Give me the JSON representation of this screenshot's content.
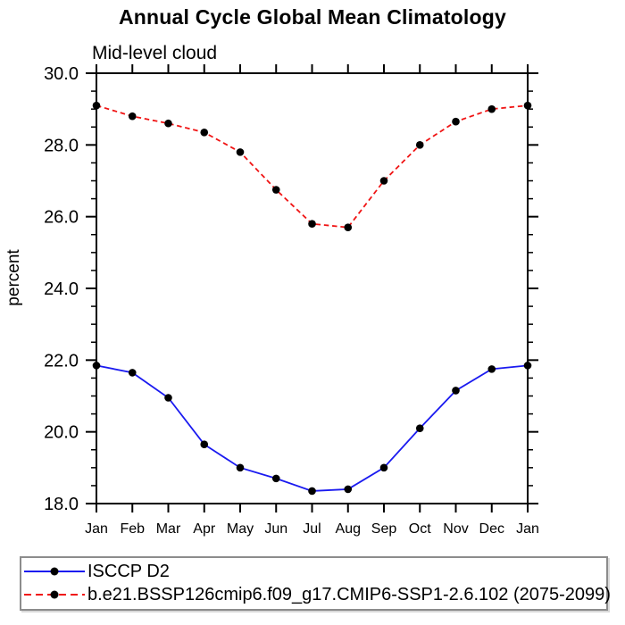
{
  "chart_data": {
    "type": "line",
    "title": "Annual Cycle Global Mean Climatology",
    "subtitle": "Mid-level cloud",
    "xlabel": "",
    "ylabel": "percent",
    "x_categories": [
      "Jan",
      "Feb",
      "Mar",
      "Apr",
      "May",
      "Jun",
      "Jul",
      "Aug",
      "Sep",
      "Oct",
      "Nov",
      "Dec",
      "Jan"
    ],
    "ylim": [
      18.0,
      30.0
    ],
    "y_major_step": 2.0,
    "y_minor_step": 0.5,
    "y_tick_labels": [
      "30.0",
      "28.0",
      "26.0",
      "24.0",
      "22.0",
      "20.0",
      "18.0"
    ],
    "grid": false,
    "frame_color": "#000000",
    "legend_position": "bottom",
    "series": [
      {
        "name": "ISCCP D2",
        "color": "#1a1af0",
        "line_style": "solid",
        "marker": "filled-circle",
        "marker_color": "#000000",
        "values": [
          21.85,
          21.65,
          20.95,
          19.65,
          19.0,
          18.7,
          18.35,
          18.4,
          19.0,
          20.1,
          21.15,
          21.75,
          21.85
        ]
      },
      {
        "name": "b.e21.BSSP126cmip6.f09_g17.CMIP6-SSP1-2.6.102 (2075-2099)",
        "color": "#f01414",
        "line_style": "dashed",
        "marker": "filled-circle",
        "marker_color": "#000000",
        "values": [
          29.1,
          28.8,
          28.6,
          28.35,
          27.8,
          26.75,
          25.8,
          25.7,
          27.0,
          28.0,
          28.65,
          29.0,
          29.1
        ]
      }
    ]
  }
}
